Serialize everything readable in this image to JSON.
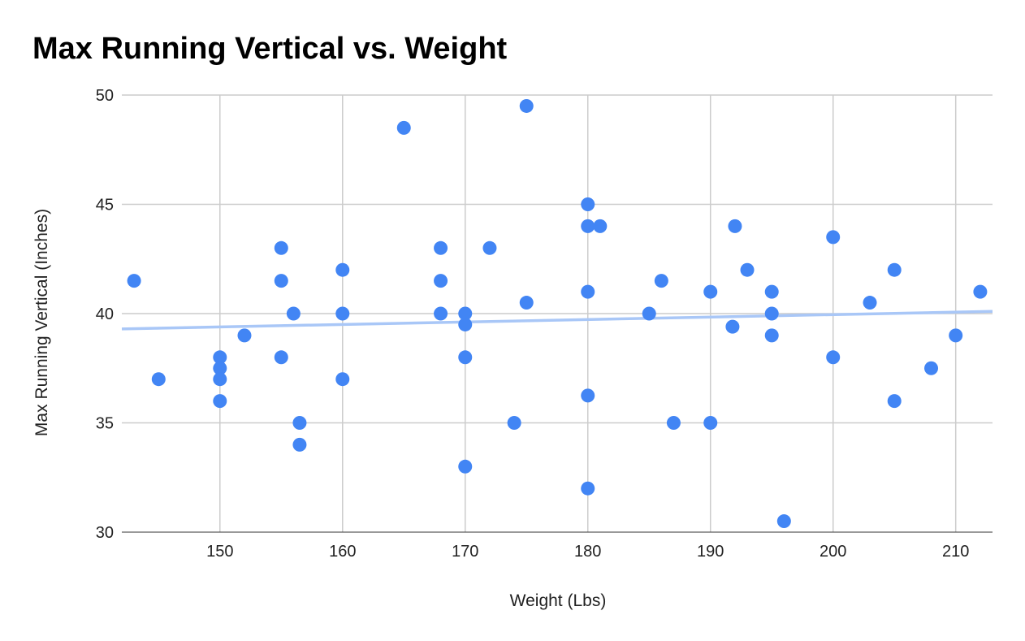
{
  "chart_data": {
    "type": "scatter",
    "title": "Max Running Vertical vs. Weight",
    "xlabel": "Weight (Lbs)",
    "ylabel": "Max Running Vertical (Inches)",
    "xlim": [
      142,
      213
    ],
    "ylim": [
      30,
      50
    ],
    "xticks": [
      "150",
      "160",
      "170",
      "180",
      "190",
      "200",
      "210"
    ],
    "yticks": [
      "30",
      "35",
      "40",
      "45",
      "50"
    ],
    "grid": true,
    "legend": "none",
    "point_color": "#4285f4",
    "trendline": {
      "type": "linear",
      "color": "#a9c7f7",
      "from": [
        142,
        39.3
      ],
      "to": [
        213,
        40.1
      ]
    },
    "points": [
      [
        143,
        41.5
      ],
      [
        145,
        37
      ],
      [
        150,
        38
      ],
      [
        150,
        37.5
      ],
      [
        150,
        37
      ],
      [
        150,
        36
      ],
      [
        152,
        39
      ],
      [
        155,
        43
      ],
      [
        155,
        41.5
      ],
      [
        155,
        38
      ],
      [
        156,
        40
      ],
      [
        156.5,
        35
      ],
      [
        156.5,
        34
      ],
      [
        160,
        42
      ],
      [
        160,
        40
      ],
      [
        160,
        37
      ],
      [
        165,
        48.5
      ],
      [
        168,
        43
      ],
      [
        168,
        41.5
      ],
      [
        168,
        40
      ],
      [
        170,
        40
      ],
      [
        170,
        39.5
      ],
      [
        170,
        38
      ],
      [
        170,
        33
      ],
      [
        172,
        43
      ],
      [
        174,
        35
      ],
      [
        175,
        49.5
      ],
      [
        175,
        40.5
      ],
      [
        180,
        45
      ],
      [
        180,
        44
      ],
      [
        181,
        44
      ],
      [
        180,
        41
      ],
      [
        180,
        36.25
      ],
      [
        180,
        32
      ],
      [
        185,
        40
      ],
      [
        186,
        41.5
      ],
      [
        187,
        35
      ],
      [
        190,
        41
      ],
      [
        190,
        35
      ],
      [
        191.8,
        39.4
      ],
      [
        192,
        44
      ],
      [
        193,
        42
      ],
      [
        195,
        41
      ],
      [
        195,
        40
      ],
      [
        195,
        39
      ],
      [
        196,
        30.5
      ],
      [
        200,
        43.5
      ],
      [
        200,
        38
      ],
      [
        203,
        40.5
      ],
      [
        205,
        42
      ],
      [
        205,
        36
      ],
      [
        208,
        37.5
      ],
      [
        210,
        39
      ],
      [
        212,
        41
      ]
    ]
  }
}
